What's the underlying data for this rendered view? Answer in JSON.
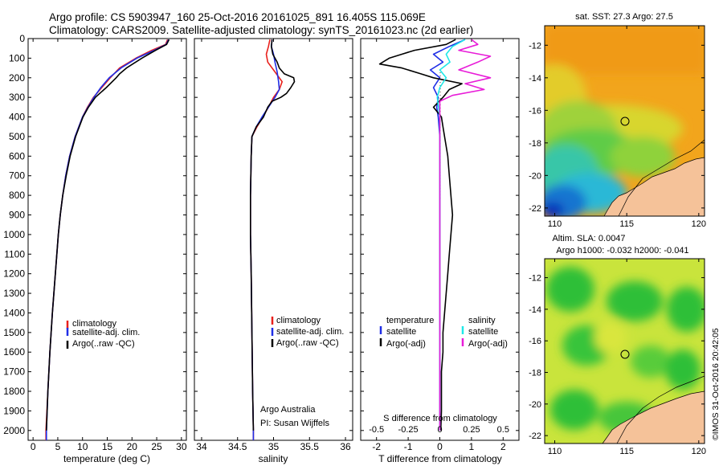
{
  "header": {
    "line1": "Argo profile: CS 5903947_160 25-Oct-2016 20161025_891 16.405S 115.069E",
    "line2": "Climatology: CARS2009. Satellite-adjusted climatology: synTS_20161023.nc (2d earlier)"
  },
  "colors": {
    "climatology": "#e8201c",
    "satellite": "#1f2ee6",
    "argo": "#000000",
    "argo_s_adj": "#e81cd8",
    "satellite_s": "#1fe8e8"
  },
  "depth_axis": {
    "ylim": [
      0,
      2050
    ],
    "ticks": [
      "0",
      "100",
      "200",
      "300",
      "400",
      "500",
      "600",
      "700",
      "800",
      "900",
      "1000",
      "1100",
      "1200",
      "1300",
      "1400",
      "1500",
      "1600",
      "1700",
      "1800",
      "1900",
      "2000"
    ]
  },
  "chart_data": [
    {
      "type": "line",
      "id": "temperature",
      "xlabel": "temperature (deg C)",
      "xlim": [
        -1,
        31
      ],
      "xticks": [
        "0",
        "5",
        "10",
        "15",
        "20",
        "25",
        "30"
      ],
      "legend": [
        "climatology",
        "satellite-adj. clim.",
        "Argo(..raw -QC)"
      ],
      "series": [
        {
          "name": "climatology",
          "depth": [
            5,
            30,
            60,
            100,
            150,
            200,
            250,
            300,
            350,
            400,
            500,
            600,
            700,
            800,
            900,
            1000,
            1200,
            1400,
            1600,
            1800,
            2000,
            2050
          ],
          "values": [
            27.2,
            26.8,
            24,
            20.8,
            17.5,
            15.6,
            13.9,
            12.2,
            11,
            10,
            8.5,
            7.4,
            6.6,
            6,
            5.5,
            5.1,
            4.5,
            3.9,
            3.4,
            3,
            2.6,
            2.6
          ]
        },
        {
          "name": "satellite-adj. clim.",
          "depth": [
            5,
            30,
            60,
            100,
            150,
            200,
            250,
            300,
            350,
            400,
            500,
            600,
            700,
            800,
            900,
            1000,
            1200,
            1400,
            1600,
            1800,
            2000,
            2050
          ],
          "values": [
            27.4,
            26.9,
            24.5,
            21,
            17.8,
            15.4,
            13.7,
            12.3,
            11.1,
            10,
            8.5,
            7.4,
            6.6,
            6,
            5.5,
            5.1,
            4.5,
            3.9,
            3.4,
            3,
            2.7,
            2.7
          ]
        },
        {
          "name": "Argo(..raw -QC)",
          "depth": [
            5,
            30,
            60,
            100,
            150,
            180,
            200,
            250,
            300,
            350,
            400,
            500,
            600,
            700,
            800,
            900,
            1000,
            1200,
            1400,
            1600,
            1800,
            2000
          ],
          "values": [
            27.5,
            27,
            24.8,
            22,
            18.9,
            17.5,
            16.8,
            14.8,
            12.6,
            11.2,
            10.1,
            8.6,
            7.5,
            6.7,
            6,
            5.5,
            5.1,
            4.5,
            3.9,
            3.4,
            3,
            2.7
          ]
        }
      ]
    },
    {
      "type": "line",
      "id": "salinity",
      "xlabel": "salinity",
      "xlim": [
        33.9,
        36.1
      ],
      "xticks": [
        "34",
        "34.5",
        "35",
        "35.5",
        "36"
      ],
      "legend": [
        "climatology",
        "satellite-adj. clim.",
        "Argo(..raw -QC)"
      ],
      "annotations": [
        "Argo Australia",
        "PI: Susan Wijffels"
      ],
      "series": [
        {
          "name": "climatology",
          "depth": [
            5,
            40,
            80,
            120,
            170,
            220,
            260,
            300,
            350,
            400,
            450,
            500,
            600,
            800,
            1000,
            1200,
            1500,
            1800,
            2000,
            2050
          ],
          "values": [
            34.95,
            34.93,
            34.9,
            34.92,
            35.02,
            35.12,
            35.08,
            35,
            34.93,
            34.85,
            34.77,
            34.7,
            34.69,
            34.68,
            34.68,
            34.69,
            34.7,
            34.71,
            34.72,
            34.72
          ]
        },
        {
          "name": "satellite-adj. clim.",
          "depth": [
            5,
            40,
            80,
            120,
            170,
            220,
            260,
            300,
            350,
            400,
            450,
            500,
            600,
            800,
            1000,
            1200,
            1500,
            1800,
            2000,
            2050
          ],
          "values": [
            34.98,
            34.97,
            35,
            35.02,
            35.05,
            35.07,
            35.08,
            35.02,
            34.93,
            34.84,
            34.76,
            34.7,
            34.69,
            34.68,
            34.68,
            34.69,
            34.7,
            34.71,
            34.72,
            34.72
          ]
        },
        {
          "name": "Argo(..raw -QC)",
          "depth": [
            5,
            40,
            80,
            120,
            150,
            180,
            200,
            220,
            250,
            280,
            300,
            320,
            350,
            400,
            450,
            500,
            600,
            800,
            1000,
            1200,
            1500,
            1800,
            2000
          ],
          "values": [
            34.98,
            34.97,
            34.99,
            35.05,
            35.08,
            35.15,
            35.28,
            35.29,
            35.24,
            35.18,
            35.1,
            34.98,
            34.92,
            34.86,
            34.76,
            34.7,
            34.69,
            34.68,
            34.68,
            34.69,
            34.7,
            34.71,
            34.72
          ]
        }
      ]
    },
    {
      "type": "line",
      "id": "differences",
      "xlabel": "T difference from climatology",
      "xlabel_top": "S difference from climatology",
      "xlim": [
        -2.5,
        2.5
      ],
      "xticks": [
        "-2",
        "-1",
        "0",
        "1",
        "2"
      ],
      "xticks_s": [
        "-0.5",
        "-0.25",
        "0",
        "0.25",
        "0.5"
      ],
      "legend_headers": [
        "temperature",
        "salinity"
      ],
      "legend": [
        "satellite",
        "Argo(-adj)",
        "satellite",
        "Argo(-adj)"
      ],
      "series": [
        {
          "name": "temperature satellite",
          "depth": [
            5,
            40,
            80,
            120,
            160,
            200,
            250,
            300,
            350,
            400,
            500,
            600,
            800,
            1000,
            1500,
            2000
          ],
          "values": [
            0.8,
            0.3,
            -0.2,
            0.1,
            -0.3,
            0,
            -0.2,
            -0.05,
            -0.1,
            -0.05,
            0,
            0,
            0,
            0,
            0,
            0
          ]
        },
        {
          "name": "temperature Argo(-adj)",
          "depth": [
            5,
            30,
            60,
            80,
            100,
            130,
            150,
            180,
            200,
            230,
            260,
            300,
            350,
            400,
            450,
            500,
            600,
            700,
            800,
            900,
            1000,
            1100,
            1200,
            1300,
            1400,
            1500,
            1600,
            1700,
            1800,
            1900,
            2000
          ],
          "values": [
            0.5,
            0.2,
            -0.8,
            -1.2,
            -1.6,
            -1.9,
            -1.2,
            -0.6,
            -0.2,
            0.7,
            0.3,
            0.1,
            -0.2,
            0.05,
            0.1,
            0.15,
            0.25,
            0.3,
            0.35,
            0.4,
            0.35,
            0.3,
            0.25,
            0.2,
            0.15,
            0.1,
            0.1,
            0.05,
            0.05,
            0.05,
            0.03
          ]
        },
        {
          "name": "salinity satellite",
          "depth": [
            5,
            40,
            80,
            120,
            160,
            200,
            250,
            300,
            400,
            500,
            800,
            1000,
            1500,
            2000
          ],
          "values": [
            0.2,
            0.1,
            0.05,
            0.08,
            0,
            0.05,
            0,
            -0.02,
            0,
            0,
            0,
            0,
            0,
            0
          ]
        },
        {
          "name": "salinity Argo(-adj)",
          "depth": [
            5,
            30,
            60,
            90,
            120,
            160,
            200,
            230,
            260,
            290,
            320,
            350,
            400,
            500,
            800,
            1000,
            1500,
            2000
          ],
          "values": [
            0.25,
            0.3,
            0.15,
            0.4,
            0.3,
            0.15,
            0.4,
            0.2,
            0.35,
            0.1,
            0,
            0,
            0,
            0,
            0,
            0,
            0,
            0
          ]
        }
      ]
    }
  ],
  "maps": {
    "sst": {
      "title": "sat. SST: 27.3 Argo: 27.5",
      "lat_ticks": [
        "-12",
        "-14",
        "-16",
        "-18",
        "-20",
        "-22"
      ],
      "lon_ticks": [
        "110",
        "115",
        "120"
      ]
    },
    "sla": {
      "title_line1": "Altim. SLA: 0.0047",
      "title_line2": "Argo h1000: -0.032 h2000: -0.041",
      "lat_ticks": [
        "-12",
        "-14",
        "-16",
        "-18",
        "-20",
        "-22"
      ],
      "lon_ticks": [
        "110",
        "115",
        "120"
      ]
    },
    "profile_location": {
      "lon": 115.069,
      "lat": -16.405
    }
  },
  "footer": {
    "stamp": "©IMOS 31-Oct-2016 20:42:05"
  }
}
